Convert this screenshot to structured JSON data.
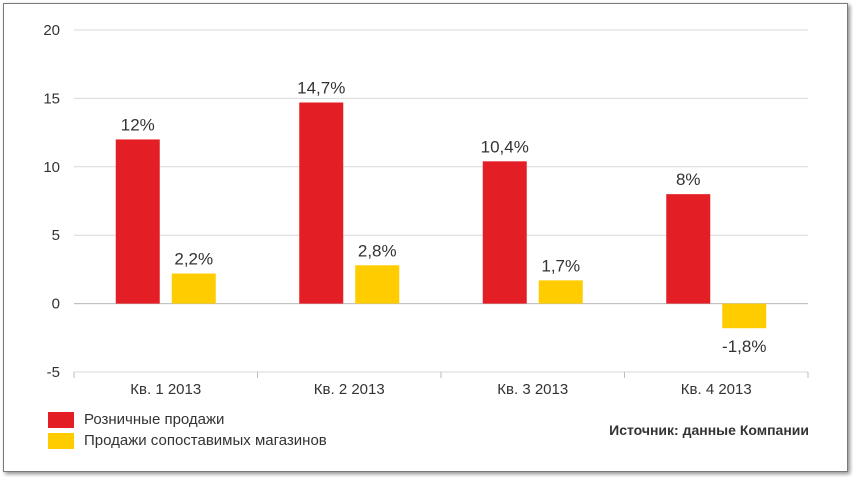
{
  "chart_data": {
    "type": "bar",
    "categories": [
      "Кв. 1 2013",
      "Кв. 2 2013",
      "Кв. 3 2013",
      "Кв. 4 2013"
    ],
    "series": [
      {
        "name": "Розничные продажи",
        "values": [
          12,
          14.7,
          10.4,
          8
        ],
        "labels": [
          "12%",
          "14,7%",
          "10,4%",
          "8%"
        ],
        "color": "#e31e24"
      },
      {
        "name": "Продажи сопоставимых магазинов",
        "values": [
          2.2,
          2.8,
          1.7,
          -1.8
        ],
        "labels": [
          "2,2%",
          "2,8%",
          "1,7%",
          "-1,8%"
        ],
        "color": "#ffcc00"
      }
    ],
    "ylim": [
      -5,
      20
    ],
    "yticks": [
      "20",
      "15",
      "10",
      "5",
      "0",
      "-5"
    ],
    "grid": true,
    "legend_position": "bottom-left"
  },
  "source_note": "Источник: данные Компании"
}
